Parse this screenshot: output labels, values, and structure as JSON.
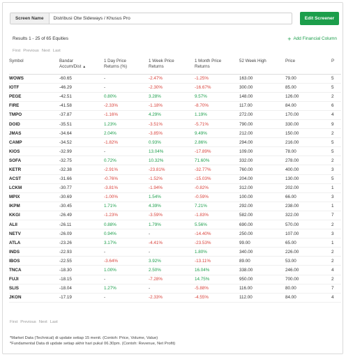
{
  "header": {
    "screen_name_label": "Screen Name",
    "screen_name_value": "Distribusi Otw Sideways / Khusus Pro",
    "edit_button_label": "Edit Screener"
  },
  "summary": {
    "results_text": "Results 1 - 25 of 65 Equities",
    "add_financial_column_label": "Add Financial Column"
  },
  "pagination": {
    "first": "First",
    "previous": "Previous",
    "next": "Next",
    "last": "Last"
  },
  "table": {
    "columns": [
      {
        "line1": "Symbol",
        "line2": ""
      },
      {
        "line1": "Bandar",
        "line2": "Accum/Dist"
      },
      {
        "line1": "1 Day Price",
        "line2": "Returns (%)"
      },
      {
        "line1": "1 Week Price",
        "line2": "Returns"
      },
      {
        "line1": "1 Month Price",
        "line2": "Returns"
      },
      {
        "line1": "52 Week High",
        "line2": ""
      },
      {
        "line1": "Price",
        "line2": ""
      },
      {
        "line1": "P",
        "line2": ""
      }
    ],
    "sort_indicator": "▲",
    "rows": [
      {
        "symbol": "WOWS",
        "bandar": "-60.65",
        "d1": "-",
        "w1": "-2.47%",
        "m1": "-1.25%",
        "high52": "163.00",
        "price": "79.00",
        "p": "5"
      },
      {
        "symbol": "IOTF",
        "bandar": "-46.29",
        "d1": "-",
        "w1": "-2.30%",
        "m1": "-16.67%",
        "high52": "300.00",
        "price": "85.00",
        "p": "5"
      },
      {
        "symbol": "PEGE",
        "bandar": "-42.51",
        "d1": "0.80%",
        "w1": "3.28%",
        "m1": "9.57%",
        "high52": "148.00",
        "price": "126.00",
        "p": "2"
      },
      {
        "symbol": "FIRE",
        "bandar": "-41.58",
        "d1": "-2.33%",
        "w1": "-1.18%",
        "m1": "-8.70%",
        "high52": "117.00",
        "price": "84.00",
        "p": "6"
      },
      {
        "symbol": "TMPO",
        "bandar": "-37.87",
        "d1": "-1.16%",
        "w1": "4.29%",
        "m1": "1.19%",
        "high52": "272.00",
        "price": "170.00",
        "p": "4"
      },
      {
        "symbol": "DOID",
        "bandar": "-35.51",
        "d1": "1.23%",
        "w1": "-3.51%",
        "m1": "-5.71%",
        "high52": "790.00",
        "price": "330.00",
        "p": "9"
      },
      {
        "symbol": "JMAS",
        "bandar": "-34.64",
        "d1": "2.04%",
        "w1": "-3.85%",
        "m1": "9.49%",
        "high52": "212.00",
        "price": "150.00",
        "p": "2"
      },
      {
        "symbol": "CAMP",
        "bandar": "-34.52",
        "d1": "-1.82%",
        "w1": "0.93%",
        "m1": "2.86%",
        "high52": "294.00",
        "price": "216.00",
        "p": "5"
      },
      {
        "symbol": "KIOS",
        "bandar": "-32.99",
        "d1": "-",
        "w1": "13.04%",
        "m1": "-17.89%",
        "high52": "109.00",
        "price": "78.00",
        "p": "5"
      },
      {
        "symbol": "SOFA",
        "bandar": "-32.75",
        "d1": "0.72%",
        "w1": "10.32%",
        "m1": "71.60%",
        "high52": "332.00",
        "price": "278.00",
        "p": "2"
      },
      {
        "symbol": "KETR",
        "bandar": "-32.38",
        "d1": "-2.91%",
        "w1": "-23.81%",
        "m1": "-32.77%",
        "high52": "760.00",
        "price": "400.00",
        "p": "3"
      },
      {
        "symbol": "ACST",
        "bandar": "-31.66",
        "d1": "-0.76%",
        "w1": "-1.52%",
        "m1": "-15.03%",
        "high52": "204.00",
        "price": "130.00",
        "p": "5"
      },
      {
        "symbol": "LCKM",
        "bandar": "-30.77",
        "d1": "-3.81%",
        "w1": "-1.94%",
        "m1": "-0.82%",
        "high52": "312.00",
        "price": "202.00",
        "p": "1"
      },
      {
        "symbol": "MPIX",
        "bandar": "-30.69",
        "d1": "-1.00%",
        "w1": "1.54%",
        "m1": "-0.59%",
        "high52": "100.00",
        "price": "66.00",
        "p": "3"
      },
      {
        "symbol": "IKPM",
        "bandar": "-30.45",
        "d1": "1.71%",
        "w1": "4.39%",
        "m1": "7.21%",
        "high52": "292.00",
        "price": "238.00",
        "p": "1"
      },
      {
        "symbol": "KKGI",
        "bandar": "-26.49",
        "d1": "-1.23%",
        "w1": "-3.59%",
        "m1": "-1.83%",
        "high52": "582.00",
        "price": "322.00",
        "p": "7"
      },
      {
        "symbol": "ALII",
        "bandar": "-26.11",
        "d1": "0.88%",
        "w1": "1.79%",
        "m1": "5.56%",
        "high52": "690.00",
        "price": "570.00",
        "p": "2"
      },
      {
        "symbol": "NETV",
        "bandar": "-26.09",
        "d1": "0.94%",
        "w1": "-",
        "m1": "-14.40%",
        "high52": "250.00",
        "price": "107.00",
        "p": "3"
      },
      {
        "symbol": "ATLA",
        "bandar": "-23.26",
        "d1": "3.17%",
        "w1": "-4.41%",
        "m1": "-23.53%",
        "high52": "99.00",
        "price": "65.00",
        "p": "1"
      },
      {
        "symbol": "INDS",
        "bandar": "-22.93",
        "d1": "-",
        "w1": "-",
        "m1": "1.80%",
        "high52": "340.00",
        "price": "226.00",
        "p": "2"
      },
      {
        "symbol": "IBOS",
        "bandar": "-22.55",
        "d1": "-3.64%",
        "w1": "3.92%",
        "m1": "-13.11%",
        "high52": "89.00",
        "price": "53.00",
        "p": "2"
      },
      {
        "symbol": "TNCA",
        "bandar": "-18.30",
        "d1": "1.00%",
        "w1": "2.50%",
        "m1": "16.04%",
        "high52": "338.00",
        "price": "246.00",
        "p": "4"
      },
      {
        "symbol": "FUJI",
        "bandar": "-18.15",
        "d1": "-",
        "w1": "-7.28%",
        "m1": "14.75%",
        "high52": "950.00",
        "price": "700.00",
        "p": "2"
      },
      {
        "symbol": "SLIS",
        "bandar": "-18.04",
        "d1": "1.27%",
        "w1": "-",
        "m1": "-5.88%",
        "high52": "116.00",
        "price": "80.00",
        "p": "7"
      },
      {
        "symbol": "JKON",
        "bandar": "-17.19",
        "d1": "-",
        "w1": "-2.33%",
        "m1": "-4.55%",
        "high52": "112.00",
        "price": "84.00",
        "p": "4"
      }
    ]
  },
  "footnotes": [
    "*Market Data (Technical) di update setiap 15 menit. (Contoh: Price, Volume, Value)",
    "*Fundamental Data di update setiap akhir hari pukul 06.30pm. (Contoh: Revenue, Net Profit)"
  ],
  "colors": {
    "accent_green": "#1c9e4b",
    "negative_red": "#d9433c"
  }
}
